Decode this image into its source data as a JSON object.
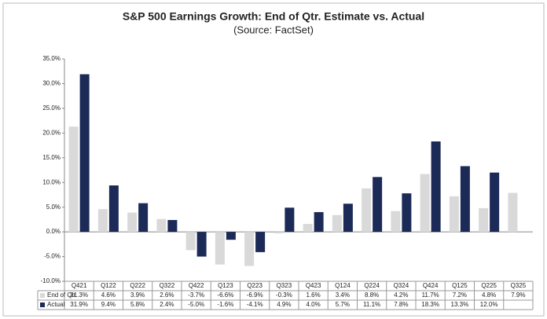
{
  "chart_data": {
    "type": "bar",
    "title": "S&P 500 Earnings Growth: End of Qtr. Estimate vs. Actual",
    "subtitle": "(Source: FactSet)",
    "categories": [
      "Q421",
      "Q122",
      "Q222",
      "Q322",
      "Q422",
      "Q123",
      "Q223",
      "Q323",
      "Q423",
      "Q124",
      "Q224",
      "Q324",
      "Q424",
      "Q125",
      "Q225",
      "Q325"
    ],
    "series": [
      {
        "name": "End of Qtr.",
        "color": "#d9d9d9",
        "values": [
          21.3,
          4.6,
          3.9,
          2.6,
          -3.7,
          -6.6,
          -6.9,
          -0.3,
          1.6,
          3.4,
          8.8,
          4.2,
          11.7,
          7.2,
          4.8,
          7.9
        ],
        "value_labels": [
          "21.3%",
          "4.6%",
          "3.9%",
          "2.6%",
          "-3.7%",
          "-6.6%",
          "-6.9%",
          "-0.3%",
          "1.6%",
          "3.4%",
          "8.8%",
          "4.2%",
          "11.7%",
          "7.2%",
          "4.8%",
          "7.9%"
        ]
      },
      {
        "name": "Actual",
        "color": "#1b2a57",
        "values": [
          31.9,
          9.4,
          5.8,
          2.4,
          -5.0,
          -1.6,
          -4.1,
          4.9,
          4.0,
          5.7,
          11.1,
          7.8,
          18.3,
          13.3,
          12.0,
          null
        ],
        "value_labels": [
          "31.9%",
          "9.4%",
          "5.8%",
          "2.4%",
          "-5.0%",
          "-1.6%",
          "-4.1%",
          "4.9%",
          "4.0%",
          "5.7%",
          "11.1%",
          "7.8%",
          "18.3%",
          "13.3%",
          "12.0%",
          null
        ]
      }
    ],
    "ylim": [
      -10,
      35
    ],
    "yticks": [
      {
        "value": -10,
        "label": "-10.0%"
      },
      {
        "value": -5,
        "label": "-5.0%"
      },
      {
        "value": 0,
        "label": "0.0%"
      },
      {
        "value": 5,
        "label": "5.0%"
      },
      {
        "value": 10,
        "label": "10.0%"
      },
      {
        "value": 15,
        "label": "15.0%"
      },
      {
        "value": 20,
        "label": "20.0%"
      },
      {
        "value": 25,
        "label": "25.0%"
      },
      {
        "value": 30,
        "label": "30.0%"
      },
      {
        "value": 35,
        "label": "35.0%"
      }
    ],
    "grid": false
  }
}
